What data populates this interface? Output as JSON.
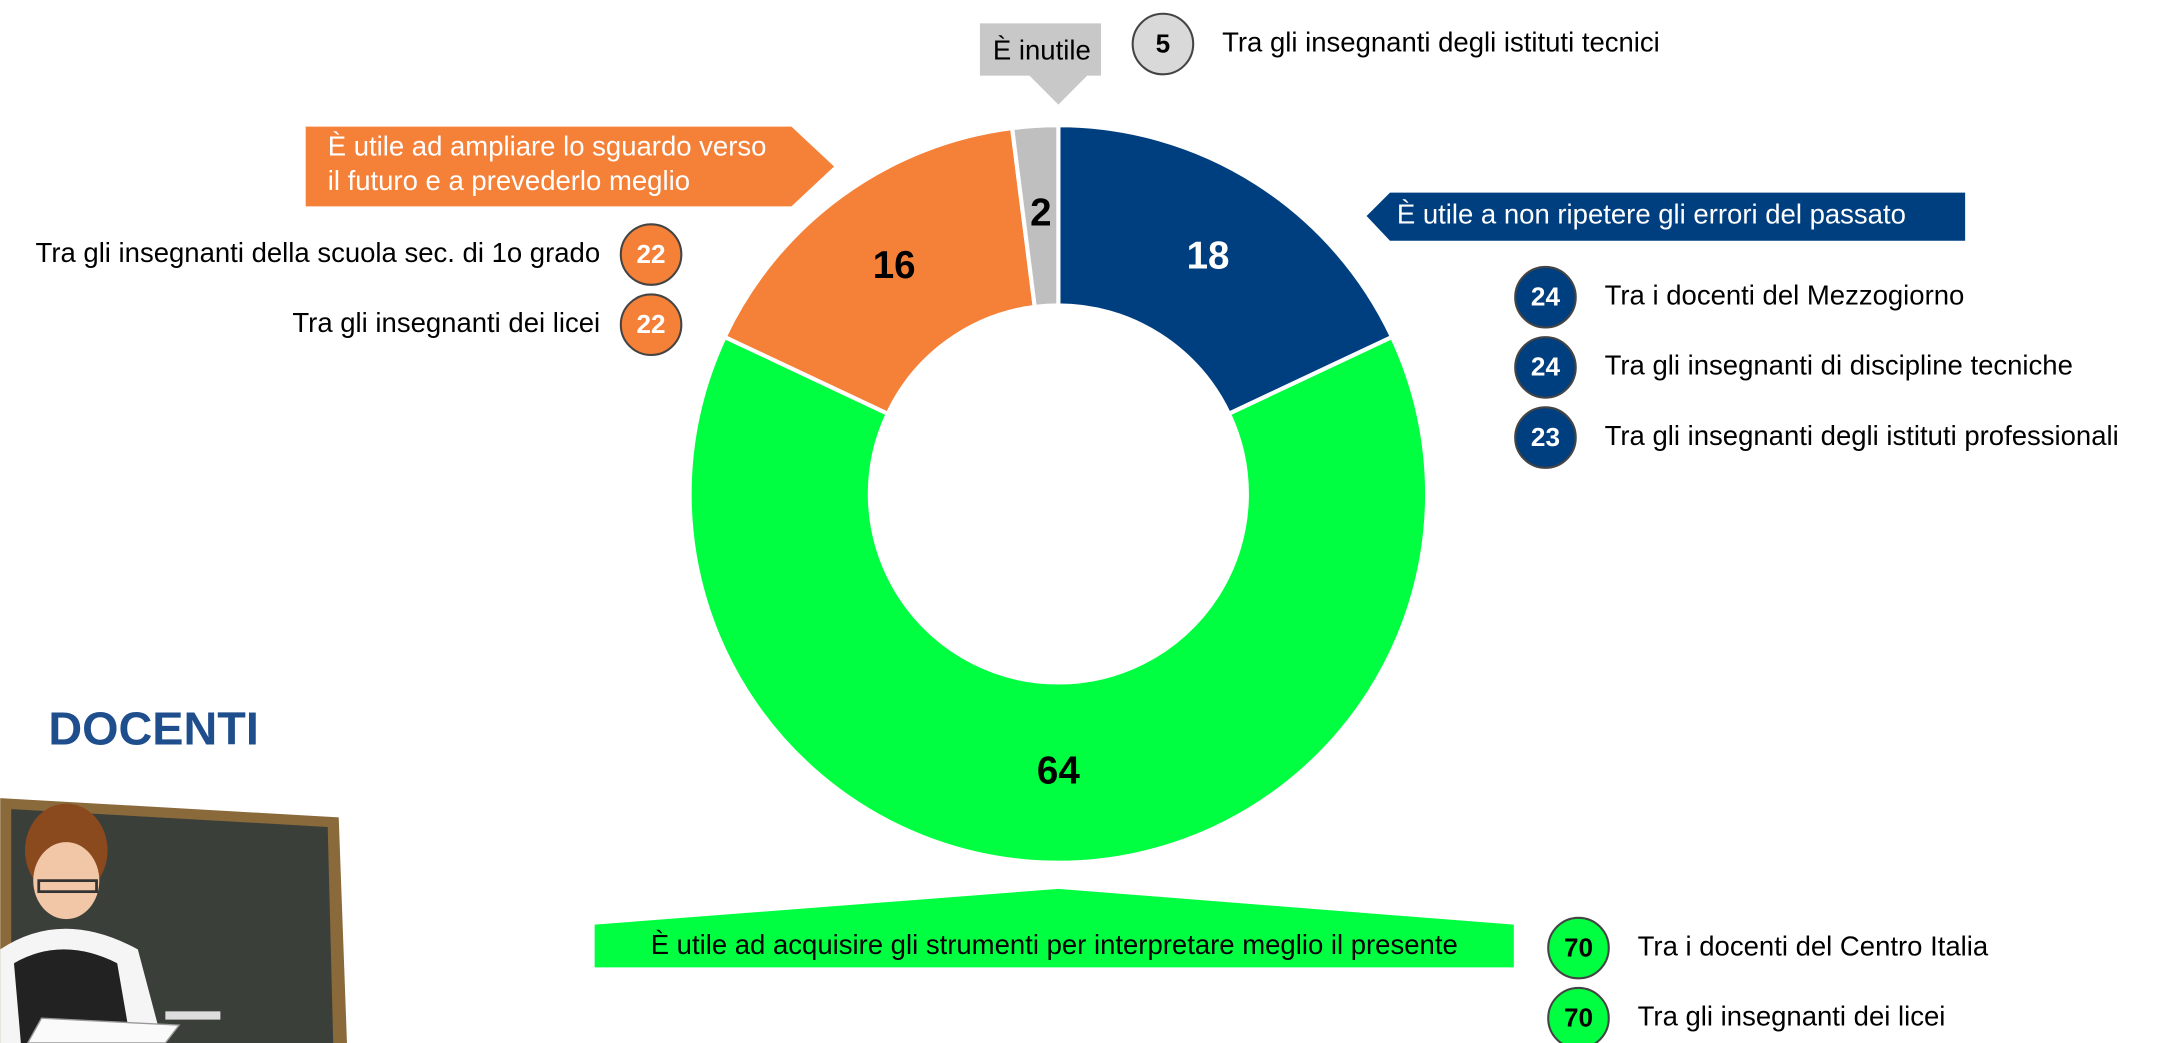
{
  "chart_data": {
    "type": "donut",
    "title": "DOCENTI",
    "categories": [
      "È utile a non ripetere gli errori del passato",
      "È utile ad acquisire gli strumenti per interpretare meglio il presente",
      "È utile ad ampliare lo sguardo verso\nil futuro e a prevederlo meglio",
      "È inutile"
    ],
    "values": [
      18,
      64,
      16,
      2
    ],
    "colors": [
      "#003f7f",
      "#00ff40",
      "#f58038",
      "#bfbfbf"
    ],
    "breakdowns": [
      [
        {
          "value": 24,
          "label": "Tra i docenti del Mezzogiorno"
        },
        {
          "value": 24,
          "label": "Tra gli insegnanti di discipline tecniche"
        },
        {
          "value": 23,
          "label": "Tra gli insegnanti degli istituti professionali"
        }
      ],
      [
        {
          "value": 70,
          "label": "Tra i docenti del Centro Italia"
        },
        {
          "value": 70,
          "label": "Tra gli insegnanti dei licei"
        }
      ],
      [
        {
          "value": 22,
          "label": "Tra gli insegnanti della scuola sec. di 1o grado"
        },
        {
          "value": 22,
          "label": "Tra gli insegnanti dei licei"
        }
      ],
      [
        {
          "value": 5,
          "label": "Tra gli insegnanti degli istituti tecnici"
        }
      ]
    ]
  }
}
